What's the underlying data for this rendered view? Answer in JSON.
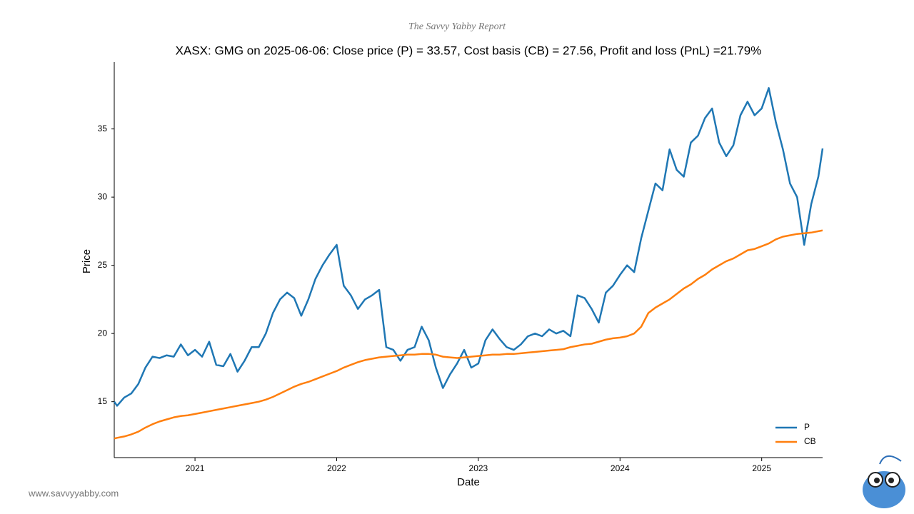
{
  "chart_data": {
    "type": "line",
    "subtitle": "The Savvy Yabby Report",
    "title": "XASX: GMG on 2025-06-06: Close price (P) = 33.57, Cost basis (CB) = 27.56, Profit and loss (PnL) =21.79%",
    "x_label": "Date",
    "y_label": "Price",
    "footer": "www.savvyyabby.com",
    "x": [
      2020.43,
      2020.45,
      2020.5,
      2020.55,
      2020.6,
      2020.65,
      2020.7,
      2020.75,
      2020.8,
      2020.85,
      2020.9,
      2020.95,
      2021.0,
      2021.05,
      2021.1,
      2021.15,
      2021.2,
      2021.25,
      2021.3,
      2021.35,
      2021.4,
      2021.45,
      2021.5,
      2021.55,
      2021.6,
      2021.65,
      2021.7,
      2021.75,
      2021.8,
      2021.85,
      2021.9,
      2021.95,
      2022.0,
      2022.05,
      2022.1,
      2022.15,
      2022.2,
      2022.25,
      2022.3,
      2022.35,
      2022.4,
      2022.45,
      2022.5,
      2022.55,
      2022.6,
      2022.65,
      2022.7,
      2022.75,
      2022.8,
      2022.85,
      2022.9,
      2022.95,
      2023.0,
      2023.05,
      2023.1,
      2023.15,
      2023.2,
      2023.25,
      2023.3,
      2023.35,
      2023.4,
      2023.45,
      2023.5,
      2023.55,
      2023.6,
      2023.65,
      2023.7,
      2023.75,
      2023.8,
      2023.85,
      2023.9,
      2023.95,
      2024.0,
      2024.05,
      2024.1,
      2024.15,
      2024.2,
      2024.25,
      2024.3,
      2024.35,
      2024.4,
      2024.45,
      2024.5,
      2024.55,
      2024.6,
      2024.65,
      2024.7,
      2024.75,
      2024.8,
      2024.85,
      2024.9,
      2024.95,
      2025.0,
      2025.05,
      2025.1,
      2025.15,
      2025.2,
      2025.25,
      2025.3,
      2025.35,
      2025.4,
      2025.43
    ],
    "series": [
      {
        "name": "P",
        "color": "#1f77b4",
        "values": [
          15.0,
          14.7,
          15.3,
          15.6,
          16.3,
          17.5,
          18.3,
          18.2,
          18.4,
          18.3,
          19.2,
          18.4,
          18.8,
          18.3,
          19.4,
          17.7,
          17.6,
          18.5,
          17.2,
          18.0,
          19.0,
          19.0,
          20.0,
          21.5,
          22.5,
          23.0,
          22.6,
          21.3,
          22.5,
          24.0,
          25.0,
          25.8,
          26.5,
          23.5,
          22.8,
          21.8,
          22.5,
          22.8,
          23.2,
          19.0,
          18.8,
          18.0,
          18.8,
          19.0,
          20.5,
          19.5,
          17.5,
          16.0,
          17.0,
          17.8,
          18.8,
          17.5,
          17.8,
          19.5,
          20.3,
          19.6,
          19.0,
          18.8,
          19.2,
          19.8,
          20.0,
          19.8,
          20.3,
          20.0,
          20.2,
          19.8,
          22.8,
          22.6,
          21.8,
          20.8,
          23.0,
          23.5,
          24.3,
          25.0,
          24.5,
          27.0,
          29.0,
          31.0,
          30.5,
          33.5,
          32.0,
          31.5,
          34.0,
          34.5,
          35.8,
          36.5,
          34.0,
          33.0,
          33.8,
          36.0,
          37.0,
          36.0,
          36.5,
          38.0,
          35.5,
          33.5,
          31.0,
          30.0,
          26.5,
          29.5,
          31.5,
          33.57
        ]
      },
      {
        "name": "CB",
        "color": "#ff7f0e",
        "values": [
          12.3,
          12.35,
          12.45,
          12.6,
          12.8,
          13.1,
          13.35,
          13.55,
          13.7,
          13.85,
          13.95,
          14.0,
          14.1,
          14.2,
          14.3,
          14.4,
          14.5,
          14.6,
          14.7,
          14.8,
          14.9,
          15.0,
          15.15,
          15.35,
          15.6,
          15.85,
          16.1,
          16.3,
          16.45,
          16.65,
          16.85,
          17.05,
          17.25,
          17.5,
          17.7,
          17.9,
          18.05,
          18.15,
          18.25,
          18.3,
          18.35,
          18.4,
          18.45,
          18.45,
          18.5,
          18.5,
          18.45,
          18.3,
          18.25,
          18.2,
          18.25,
          18.3,
          18.35,
          18.4,
          18.45,
          18.45,
          18.5,
          18.5,
          18.55,
          18.6,
          18.65,
          18.7,
          18.75,
          18.8,
          18.85,
          19.0,
          19.1,
          19.2,
          19.25,
          19.4,
          19.55,
          19.65,
          19.7,
          19.8,
          20.0,
          20.5,
          21.5,
          21.9,
          22.2,
          22.5,
          22.9,
          23.3,
          23.6,
          24.0,
          24.3,
          24.7,
          25.0,
          25.3,
          25.5,
          25.8,
          26.1,
          26.2,
          26.4,
          26.6,
          26.9,
          27.1,
          27.2,
          27.3,
          27.35,
          27.4,
          27.5,
          27.56
        ]
      }
    ],
    "xlim": [
      2020.43,
      2025.43
    ],
    "xticks": [
      2021,
      2022,
      2023,
      2024,
      2025
    ],
    "ylim": [
      10.9,
      39.9
    ],
    "yticks": [
      15,
      20,
      25,
      30,
      35
    ],
    "grid": false,
    "legend": "lower right"
  }
}
